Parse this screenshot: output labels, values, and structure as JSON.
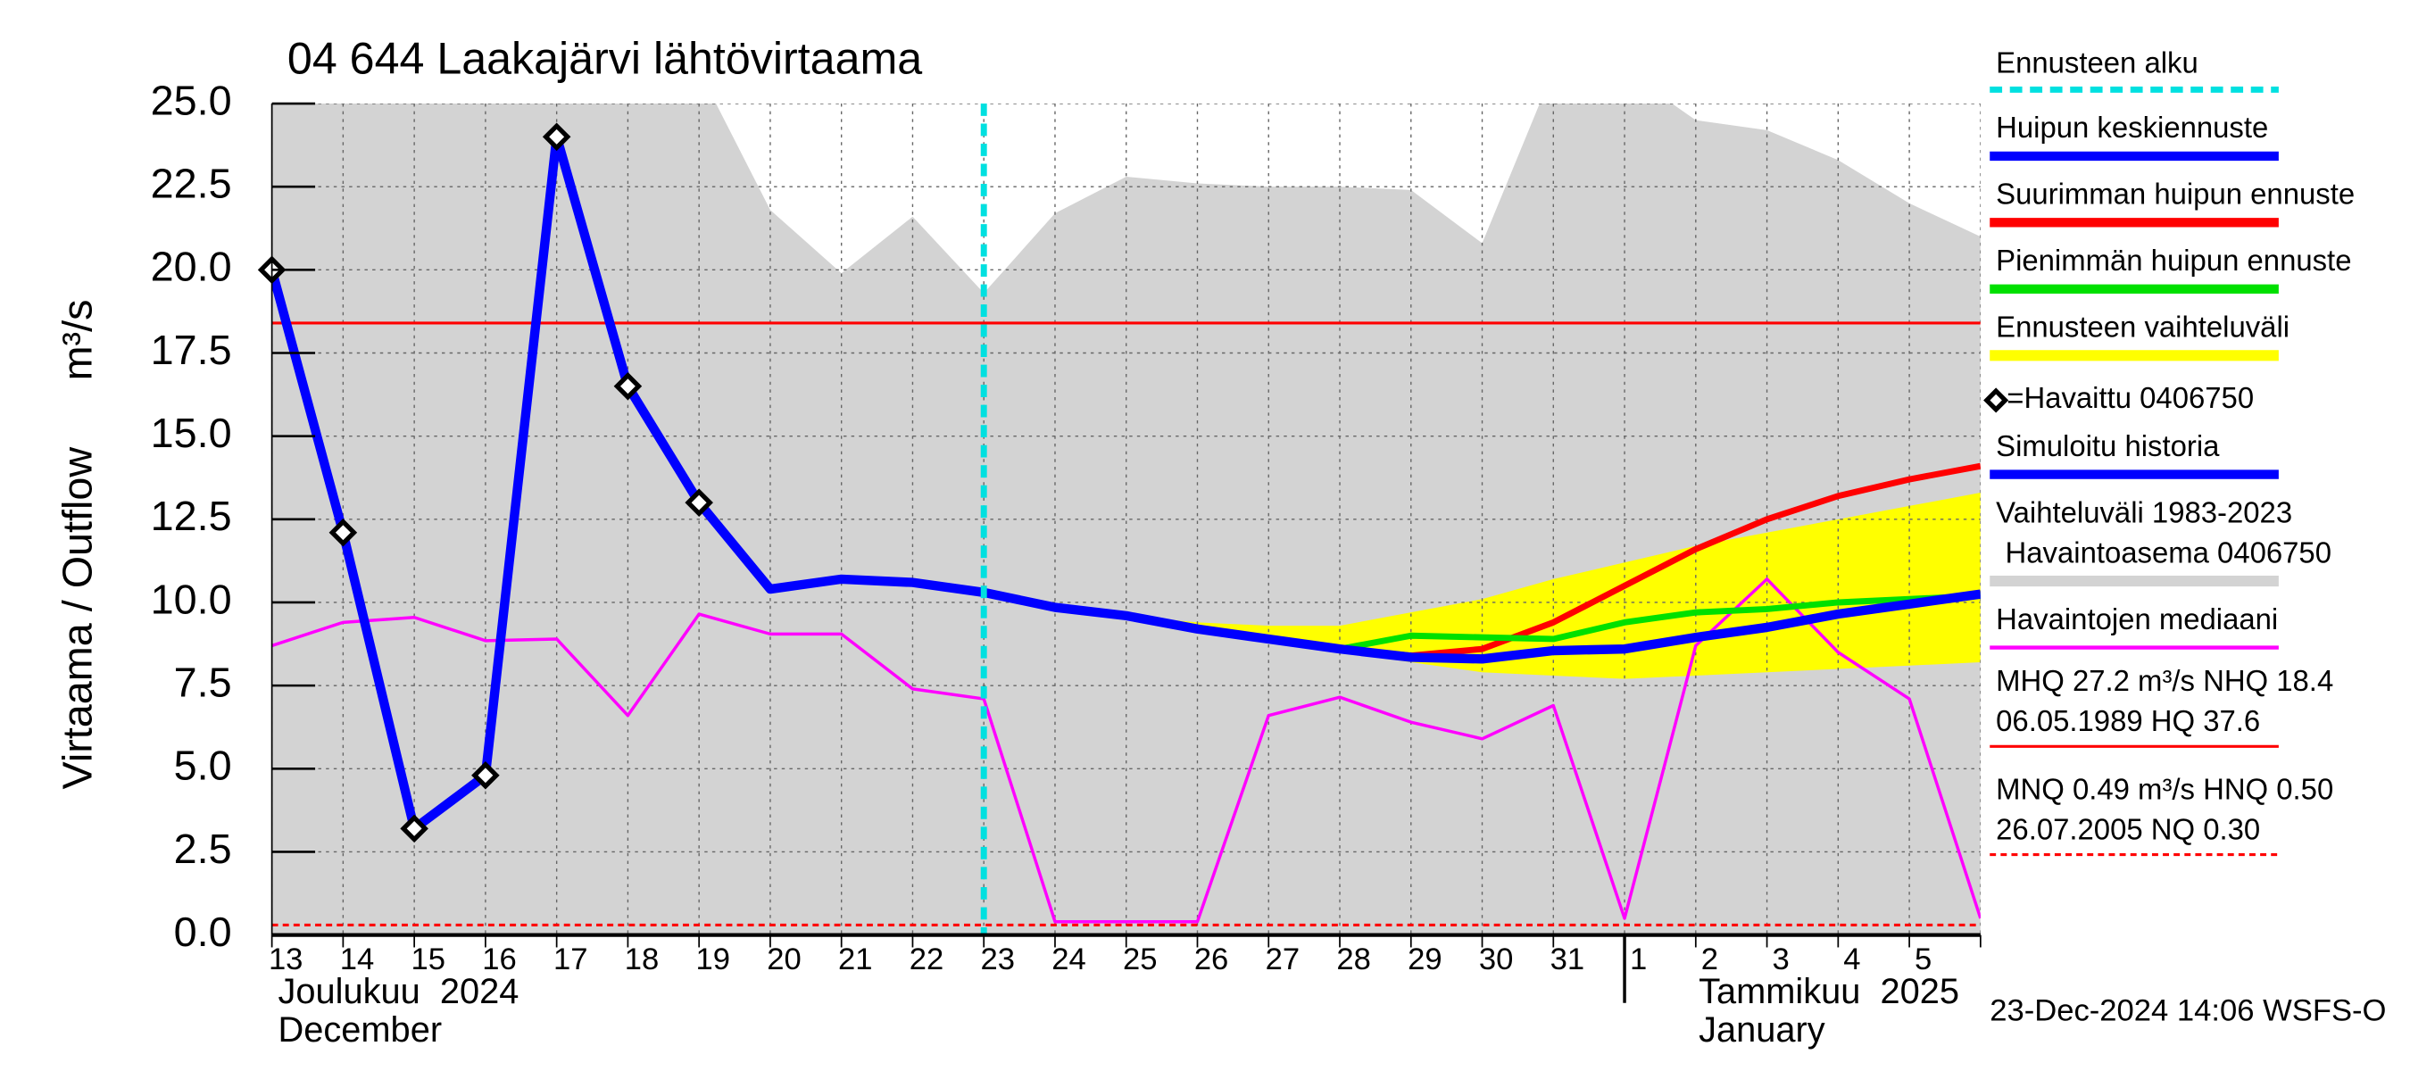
{
  "chart_data": {
    "type": "line",
    "title": "04 644 Laakajärvi lähtövirtaama",
    "y_label": [
      "Virtaama / Outflow",
      "m³/s"
    ],
    "months": [
      [
        "Joulukuu  2024",
        "December"
      ],
      [
        "Tammikuu  2025",
        "January"
      ]
    ],
    "footer": "23-Dec-2024 14:06 WSFS-O",
    "categories": [
      "13",
      "14",
      "15",
      "16",
      "17",
      "18",
      "19",
      "20",
      "21",
      "22",
      "23",
      "24",
      "25",
      "26",
      "27",
      "28",
      "29",
      "30",
      "31",
      "1",
      "2",
      "3",
      "4",
      "5",
      null
    ],
    "ylim": [
      0,
      25
    ],
    "yticks": [
      {
        "value": 0,
        "label": "0.0"
      },
      2.5,
      {
        "value": 5,
        "label": "5.0"
      },
      7.5,
      {
        "value": 10,
        "label": "10.0"
      },
      12.5,
      {
        "value": 15,
        "label": "15.0"
      },
      17.5,
      {
        "value": 20,
        "label": "20.0"
      },
      22.5,
      {
        "value": 25,
        "label": "25.0"
      }
    ],
    "grid": true,
    "forecast_start": {
      "name": "Ennusteen alku",
      "index": 10,
      "color": "#00e0e0"
    },
    "series": [
      {
        "name": "Huipun keskiennuste",
        "kind": "line",
        "color": "#0000ff",
        "values": [
          null,
          null,
          null,
          null,
          null,
          null,
          null,
          null,
          null,
          null,
          10.3,
          9.85,
          9.6,
          9.2,
          8.9,
          8.6,
          8.35,
          8.3,
          8.55,
          8.6,
          8.95,
          9.25,
          9.65,
          9.95,
          10.25
        ]
      },
      {
        "name": "Suurimman huipun ennuste",
        "kind": "line",
        "color": "#ff0000",
        "values": [
          null,
          null,
          null,
          null,
          null,
          null,
          null,
          null,
          null,
          null,
          10.3,
          9.85,
          9.6,
          9.2,
          8.9,
          8.6,
          8.4,
          8.6,
          9.4,
          10.5,
          11.6,
          12.5,
          13.2,
          13.7,
          14.1
        ]
      },
      {
        "name": "Pienimmän huipun ennuste",
        "kind": "line",
        "color": "#00e000",
        "values": [
          null,
          null,
          null,
          null,
          null,
          null,
          null,
          null,
          null,
          null,
          10.3,
          9.85,
          9.6,
          9.2,
          8.9,
          8.6,
          9.0,
          8.95,
          8.9,
          9.4,
          9.7,
          9.8,
          10.0,
          10.1,
          10.2
        ]
      },
      {
        "name": "Ennusteen vaihteluväli",
        "kind": "band",
        "color": "#ffff00",
        "upper": [
          null,
          null,
          null,
          null,
          null,
          null,
          null,
          null,
          null,
          null,
          10.3,
          9.9,
          9.6,
          9.4,
          9.3,
          9.3,
          9.7,
          10.1,
          10.7,
          11.2,
          11.7,
          12.1,
          12.5,
          12.9,
          13.3
        ],
        "lower": [
          null,
          null,
          null,
          null,
          null,
          null,
          null,
          null,
          null,
          null,
          10.3,
          9.8,
          9.5,
          9.1,
          8.8,
          8.5,
          8.2,
          7.9,
          7.8,
          7.7,
          7.8,
          7.9,
          8.0,
          8.1,
          8.2
        ]
      },
      {
        "name": "=Havaittu 0406750",
        "kind": "marker",
        "color": "#000000",
        "values": [
          20.0,
          12.1,
          3.2,
          4.8,
          24.0,
          16.5,
          13.0,
          null,
          null,
          null,
          null,
          null,
          null,
          null,
          null,
          null,
          null,
          null,
          null,
          null,
          null,
          null,
          null,
          null,
          null
        ]
      },
      {
        "name": "Simuloitu historia",
        "kind": "line",
        "color": "#0000ff",
        "values": [
          20.0,
          12.1,
          3.2,
          4.8,
          24.0,
          16.5,
          13.0,
          10.4,
          10.7,
          10.6,
          10.3,
          null,
          null,
          null,
          null,
          null,
          null,
          null,
          null,
          null,
          null,
          null,
          null,
          null,
          null
        ]
      },
      {
        "name": [
          "Vaihteluväli 1983-2023",
          "Havaintoasema 0406750"
        ],
        "kind": "band",
        "color": "#d3d3d3",
        "upper": [
          26,
          26,
          26,
          26,
          26,
          26,
          26,
          21.8,
          19.9,
          21.6,
          19.3,
          21.7,
          22.8,
          22.6,
          22.5,
          22.5,
          22.4,
          20.8,
          26,
          26,
          24.5,
          24.2,
          23.3,
          22.0,
          21.0
        ],
        "lower": [
          0,
          0,
          0,
          0,
          0,
          0,
          0,
          0,
          0,
          0,
          0,
          0,
          0,
          0,
          0,
          0,
          0,
          0,
          0,
          0,
          0,
          0,
          0,
          0,
          0
        ]
      },
      {
        "name": "Havaintojen mediaani",
        "kind": "line",
        "color": "#ff00ff",
        "values": [
          8.7,
          9.4,
          9.55,
          8.85,
          8.9,
          6.6,
          9.65,
          9.05,
          9.05,
          7.4,
          7.1,
          0.4,
          0.4,
          0.4,
          6.6,
          7.15,
          6.4,
          5.9,
          6.9,
          0.5,
          8.7,
          10.7,
          8.5,
          7.1,
          0.5
        ]
      }
    ],
    "hlines": [
      {
        "label": [
          "MHQ 27.2 m³/s NHQ 18.4",
          "06.05.1989 HQ 37.6"
        ],
        "value": 18.4,
        "color": "#ff0000",
        "dashed": false
      },
      {
        "label": [
          "MNQ 0.49 m³/s HNQ 0.50",
          "26.07.2005 NQ 0.30"
        ],
        "value": 0.3,
        "color": "#ff0000",
        "dashed": true
      }
    ]
  }
}
